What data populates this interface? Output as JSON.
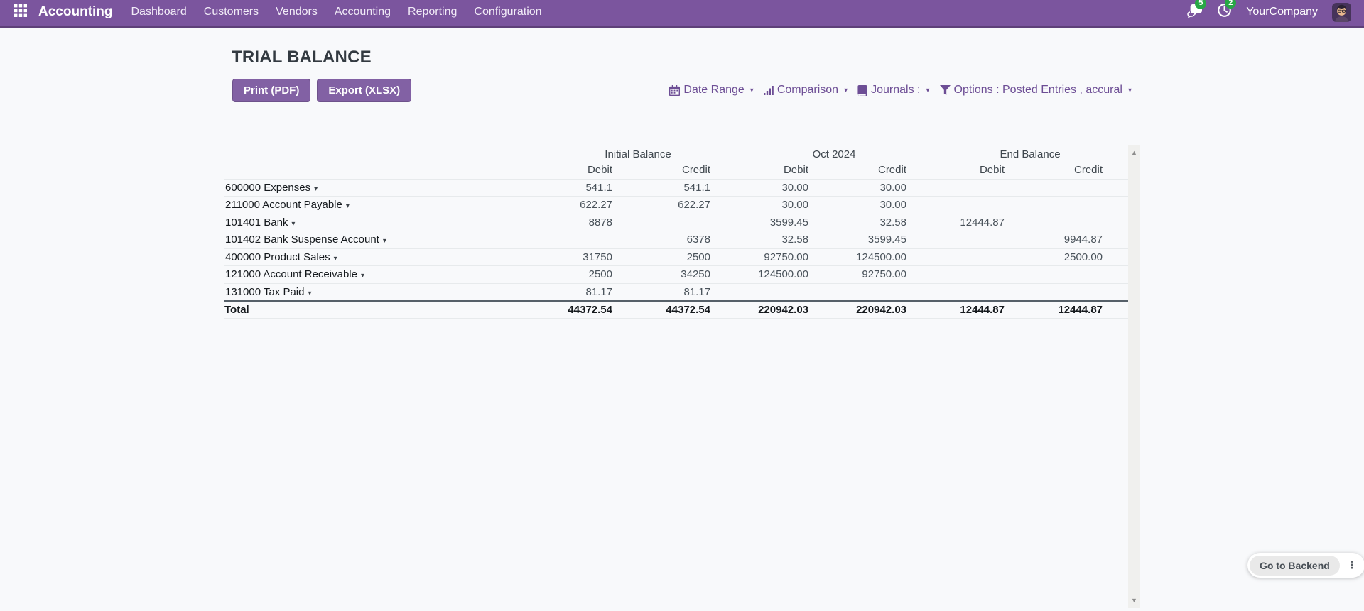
{
  "colors": {
    "navbar": "#7b559e",
    "navbar_border": "#5e4079",
    "accent": "#8261a4",
    "filter_text": "#6d4e95",
    "badge": "#28a745",
    "page_bg": "#f8f9fb",
    "row_border": "#e7eaec",
    "total_border": "#566069"
  },
  "nav": {
    "app_name": "Accounting",
    "menu_items": [
      "Dashboard",
      "Customers",
      "Vendors",
      "Accounting",
      "Reporting",
      "Configuration"
    ],
    "messages_badge": "5",
    "activities_badge": "2",
    "company": "YourCompany"
  },
  "page": {
    "title": "TRIAL BALANCE",
    "buttons": [
      {
        "name": "print-pdf-button",
        "label": "Print (PDF)"
      },
      {
        "name": "export-xlsx-button",
        "label": "Export (XLSX)"
      }
    ],
    "filters": [
      {
        "name": "date-range-filter",
        "icon": "calendar-icon",
        "label": "Date Range"
      },
      {
        "name": "comparison-filter",
        "icon": "bar-chart-icon",
        "label": "Comparison"
      },
      {
        "name": "journals-filter",
        "icon": "journal-icon",
        "label": "Journals :"
      },
      {
        "name": "options-filter",
        "icon": "filter-icon",
        "label": "Options : Posted Entries , accural"
      }
    ]
  },
  "table": {
    "groups": [
      "Initial Balance",
      "Oct 2024",
      "End Balance"
    ],
    "subheaders": [
      "Debit",
      "Credit",
      "Debit",
      "Credit",
      "Debit",
      "Credit"
    ],
    "rows": [
      {
        "account": "600000 Expenses",
        "values": [
          "541.1",
          "541.1",
          "30.00",
          "30.00",
          "",
          ""
        ]
      },
      {
        "account": "211000 Account Payable",
        "values": [
          "622.27",
          "622.27",
          "30.00",
          "30.00",
          "",
          ""
        ]
      },
      {
        "account": "101401 Bank",
        "values": [
          "8878",
          "",
          "3599.45",
          "32.58",
          "12444.87",
          ""
        ]
      },
      {
        "account": "101402 Bank Suspense Account",
        "values": [
          "",
          "6378",
          "32.58",
          "3599.45",
          "",
          "9944.87"
        ]
      },
      {
        "account": "400000 Product Sales",
        "values": [
          "31750",
          "2500",
          "92750.00",
          "124500.00",
          "",
          "2500.00"
        ]
      },
      {
        "account": "121000 Account Receivable",
        "values": [
          "2500",
          "34250",
          "124500.00",
          "92750.00",
          "",
          ""
        ]
      },
      {
        "account": "131000 Tax Paid",
        "values": [
          "81.17",
          "81.17",
          "",
          "",
          "",
          ""
        ]
      }
    ],
    "total": {
      "label": "Total",
      "values": [
        "44372.54",
        "44372.54",
        "220942.03",
        "220942.03",
        "12444.87",
        "12444.87"
      ]
    }
  },
  "backend_widget": {
    "label": "Go to Backend"
  }
}
